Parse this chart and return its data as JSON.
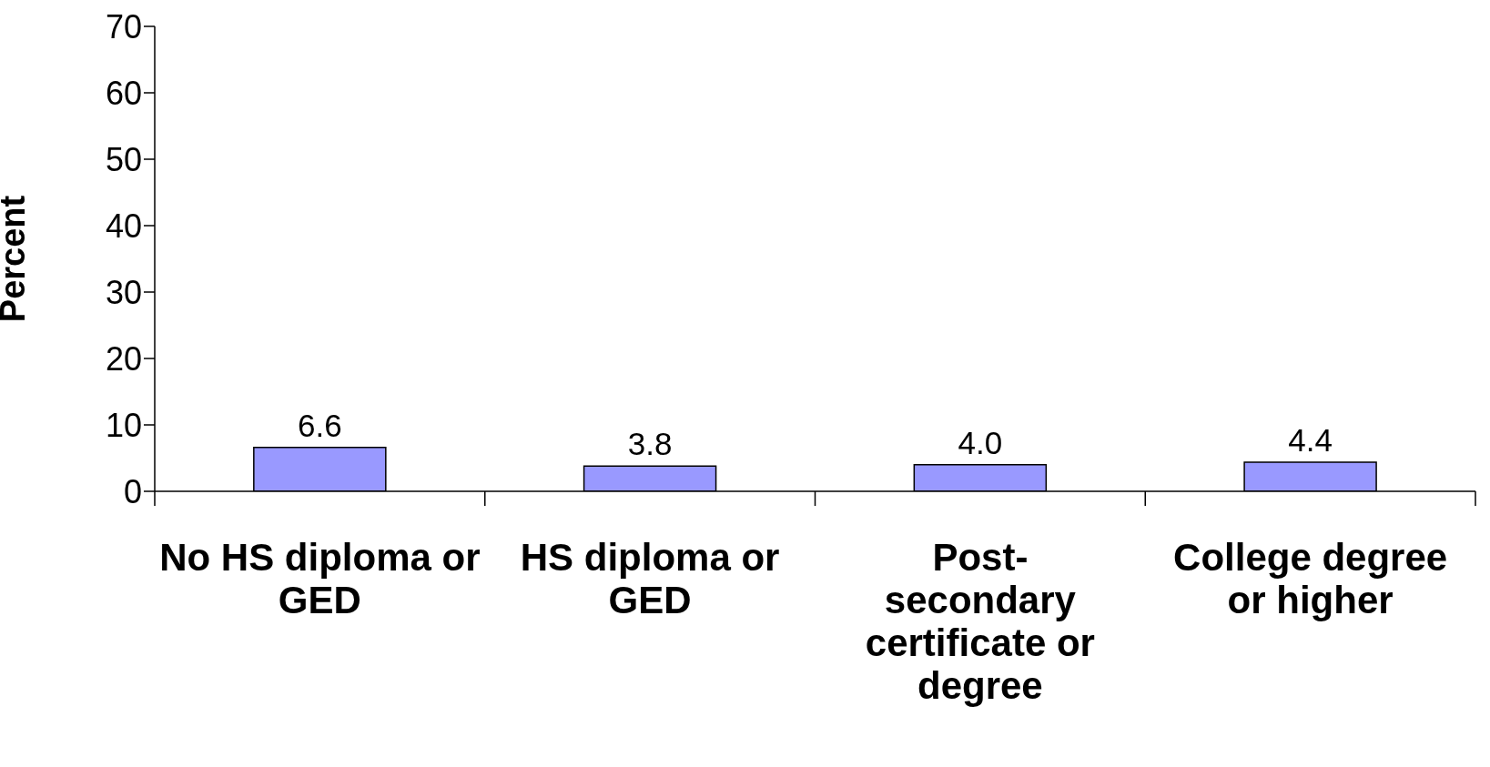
{
  "chart_data": {
    "type": "bar",
    "ylabel": "Percent",
    "categories": [
      "No HS diploma or GED",
      "HS diploma or GED",
      "Post-secondary certificate or degree",
      "College degree or higher"
    ],
    "values": [
      6.6,
      3.8,
      4.0,
      4.4
    ],
    "value_labels": [
      "6.6",
      "3.8",
      "4.0",
      "4.4"
    ],
    "color": "#9999ff",
    "ylim": [
      0,
      70
    ],
    "yticks": [
      0,
      10,
      20,
      30,
      40,
      50,
      60,
      70
    ],
    "grid": false,
    "legend": false
  }
}
